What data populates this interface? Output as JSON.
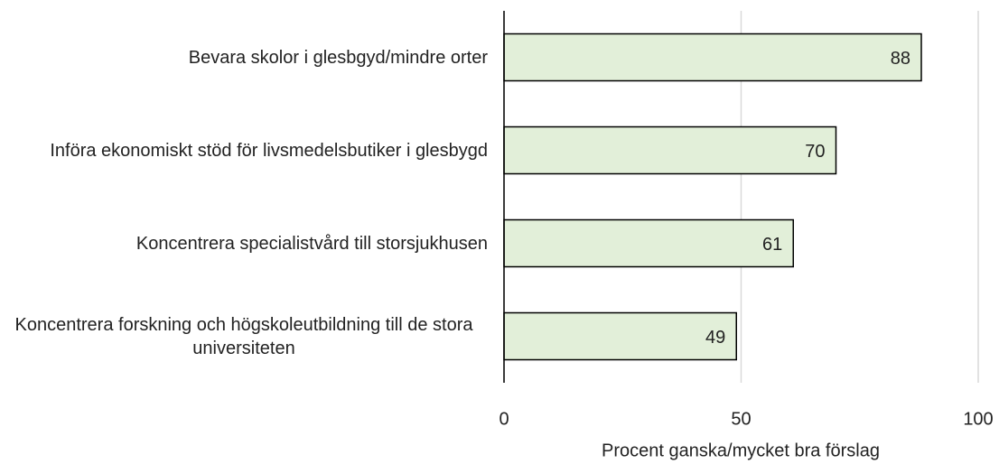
{
  "chart_data": {
    "type": "bar",
    "orientation": "horizontal",
    "categories": [
      "Bevara skolor i glesbgyd/mindre orter",
      "Införa ekonomiskt stöd för livsmedelsbutiker i glesbygd",
      "Koncentrera specialistvård till storsjukhusen",
      "Koncentrera forskning och högskoleutbildning till de stora universiteten"
    ],
    "values": [
      88,
      70,
      61,
      49
    ],
    "color": "#e2efd9",
    "xlim": [
      0,
      100
    ],
    "xticks": [
      0,
      50,
      100
    ],
    "grid": true,
    "xlabel": "Procent ganska/mycket bra förslag"
  }
}
